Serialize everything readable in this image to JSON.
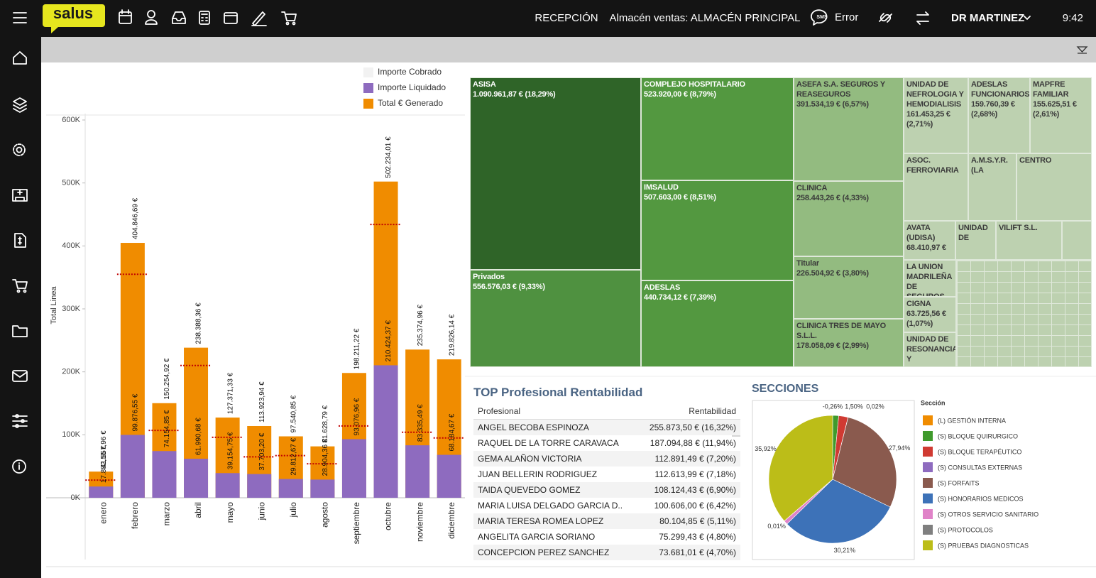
{
  "header": {
    "logo": "salus",
    "location": "RECEPCIÓN",
    "warehouse": "Almacén ventas: ALMACÉN PRINCIPAL",
    "sms": "SMS",
    "status": "Error",
    "user": "DR MARTINEZ",
    "time": "9:42"
  },
  "chart_data": [
    {
      "type": "bar",
      "y_label": "Total Linea",
      "categories": [
        "enero",
        "febrero",
        "marzo",
        "abril",
        "mayo",
        "junio",
        "julio",
        "agosto",
        "septiembre",
        "octubre",
        "noviembre",
        "diciembre"
      ],
      "series": [
        {
          "name": "Importe Cobrado",
          "color": "#f2f2f2",
          "line_color": "#c00000",
          "values": [
            28000,
            355000,
            107000,
            210000,
            96000,
            65000,
            67000,
            54000,
            114000,
            434000,
            104000,
            95000
          ]
        },
        {
          "name": "Importe Liquidado",
          "color": "#8e6bbf",
          "values": [
            17882.55,
            99876.55,
            74154.85,
            61990.68,
            39154.75,
            37703.2,
            29812.67,
            28904.36,
            93076.96,
            210424.37,
            83335.49,
            68184.67
          ],
          "value_labels": [
            "17.882,55 €",
            "99.876,55 €",
            "74.154,85 €",
            "61.990,68 €",
            "39.154,75 €",
            "37.703,20 €",
            "29.812,67 €",
            "28.904,36 €",
            "93.076,96 €",
            "210.424,37 €",
            "83.335,49 €",
            "68.184,67 €"
          ]
        },
        {
          "name": "Total € Generado",
          "color": "#f08c00",
          "values": [
            41557.96,
            404846.69,
            150254.92,
            238388.36,
            127371.33,
            113923.94,
            97540.85,
            81628.79,
            198211.22,
            502234.01,
            235374.96,
            219826.14
          ],
          "value_labels": [
            "41.557,96 €",
            "404.846,69 €",
            "150.254,92 €",
            "238.388,36 €",
            "127.371,33 €",
            "113.923,94 €",
            "97.540,85 €",
            "81.628,79 €",
            "198.211,22 €",
            "502.234,01 €",
            "235.374,96 €",
            "219.826,14 €"
          ]
        }
      ],
      "ylim": [
        0,
        600000
      ],
      "yticks": [
        {
          "value": 0,
          "label": "0K"
        },
        {
          "value": 100000,
          "label": "100K"
        },
        {
          "value": 200000,
          "label": "200K"
        },
        {
          "value": 300000,
          "label": "300K"
        },
        {
          "value": 400000,
          "label": "400K"
        },
        {
          "value": 500000,
          "label": "500K"
        },
        {
          "value": 600000,
          "label": "600K"
        }
      ]
    },
    {
      "type": "treemap",
      "categories": [
        "ASISA",
        "Privados",
        "COMPLEJO HOSPITALARIO",
        "IMSALUD",
        "ADESLAS",
        "ASEFA S.A. SEGUROS Y REASEGUROS",
        "CLINICA",
        "Titular",
        "CLINICA TRES DE MAYO S.L.L.",
        "UNIDAD DE NEFROLOGIA Y HEMODIALISIS",
        "ADESLAS FUNCIONARIOS",
        "MAPFRE FAMILIAR",
        "ASOC. FERROVIARIA",
        "A.M.S.Y.R. (LA",
        "CENTRO",
        "AVATA (UDISA)",
        "UNIDAD DE",
        "VILIFT S.L.",
        "LA UNION MADRILEÑA DE SEGUROS",
        "CIGNA",
        "UNIDAD DE RESONANCIA Y"
      ],
      "values": [
        1090961.87,
        556576.03,
        523920.0,
        507603.0,
        440734.12,
        391534.19,
        258443.26,
        226504.92,
        178058.09,
        161453.25,
        159760.39,
        155625.51,
        120000,
        105000,
        100000,
        68410.97,
        66000,
        65000,
        64000,
        63725.56,
        60000
      ],
      "value_labels": [
        "1.090.961,87 € (18,29%)",
        "556.576,03 € (9,33%)",
        "523.920,00 € (8,79%)",
        "507.603,00 € (8,51%)",
        "440.734,12 € (7,39%)",
        "391.534,19 € (6,57%)",
        "258.443,26 € (4,33%)",
        "226.504,92 € (3,80%)",
        "178.058,09 € (2,99%)",
        "161.453,25 € (2,71%)",
        "159.760,39 € (2,68%)",
        "155.625,51 € (2,61%)",
        null,
        null,
        null,
        "68.410,97 €",
        null,
        null,
        null,
        "63.725,56 € (1,07%)",
        null
      ],
      "colors": [
        "#2f6428",
        "#4f9140",
        "#539840",
        "#539840",
        "#539840",
        "#93bb80",
        "#93bb80",
        "#93bb80",
        "#93bb80",
        "#bdd1b0",
        "#bdd1b0",
        "#bdd1b0",
        "#bdd1b0",
        "#bdd1b0",
        "#bdd1b0",
        "#bdd1b0",
        "#bdd1b0",
        "#bdd1b0",
        "#bdd1b0",
        "#bdd1b0",
        "#bdd1b0"
      ]
    },
    {
      "type": "pie",
      "title": "SECCIONES",
      "legend_title": "Sección",
      "categories": [
        "(L) GESTIÓN INTERNA",
        "(S) BLOQUE QUIRURGICO",
        "(S) BLOQUE TERAPÉUTICO",
        "(S) CONSULTAS EXTERNAS",
        "(S) FORFAITS",
        "(S) HONORARIOS MEDICOS",
        "(S) OTROS SERVICIO SANITARIO",
        "(S) PROTOCOLOS",
        "(S) PRUEBAS DIAGNOSTICAS"
      ],
      "values": [
        -0.26,
        1.5,
        2.34,
        0.02,
        27.94,
        30.21,
        1.0,
        0.01,
        35.92
      ],
      "value_labels": [
        "-0,26%",
        "1,50%",
        null,
        "0,02%",
        "27,94%",
        "30,21%",
        null,
        "0,01%",
        "35,92%"
      ],
      "colors": [
        "#f08c00",
        "#3f9a2c",
        "#d03a32",
        "#8e6bbf",
        "#8a5a4e",
        "#3d72b8",
        "#e083c8",
        "#7f7f7f",
        "#bcbd18"
      ]
    }
  ],
  "table": {
    "title": "TOP Profesional Rentabilidad",
    "columns": [
      "Profesional",
      "Rentabilidad"
    ],
    "rows": [
      [
        "ANGEL BECOBA ESPINOZA",
        "255.873,50 € (16,32%)"
      ],
      [
        "RAQUEL DE LA TORRE CARAVACA",
        "187.094,88 € (11,94%)"
      ],
      [
        "GEMA ALAÑON VICTORIA",
        "112.891,49 € (7,20%)"
      ],
      [
        "JUAN BELLERIN RODRIGUEZ",
        "112.613,99 € (7,18%)"
      ],
      [
        "TAIDA QUEVEDO GOMEZ",
        "108.124,43 € (6,90%)"
      ],
      [
        "MARIA LUISA DELGADO GARCIA D..",
        "100.606,00 € (6,42%)"
      ],
      [
        "MARIA TERESA ROMEA LOPEZ",
        "80.104,85 € (5,11%)"
      ],
      [
        "ANGELITA GARCIA SORIANO",
        "75.299,43 € (4,80%)"
      ],
      [
        "CONCEPCION PEREZ SANCHEZ",
        "73.681,01 € (4,70%)"
      ]
    ]
  }
}
